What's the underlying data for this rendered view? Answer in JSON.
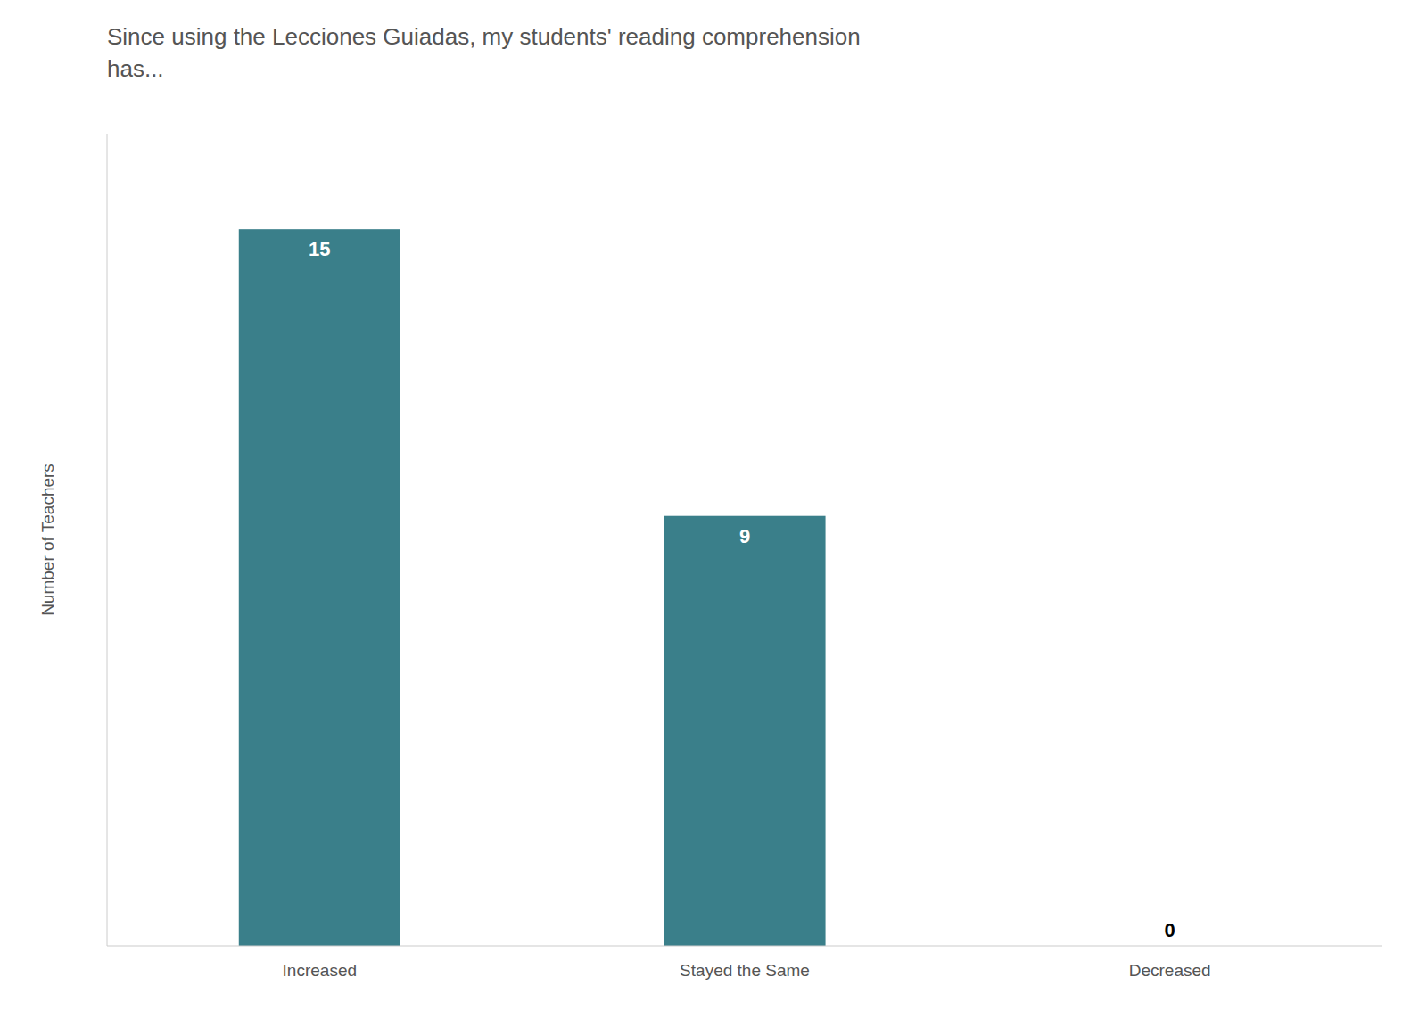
{
  "chart_data": {
    "type": "bar",
    "title": "Since using the Lecciones Guiadas, my students' reading comprehension\nhas...",
    "y_label": "Number of Teachers",
    "categories": [
      "Increased",
      "Stayed the Same",
      "Decreased"
    ],
    "values": [
      15,
      9,
      0
    ],
    "color": "#3a7f8a",
    "ylim": [
      0,
      17
    ],
    "yticks": [],
    "grid": false,
    "data_labels": true,
    "tick_labels": "x"
  }
}
